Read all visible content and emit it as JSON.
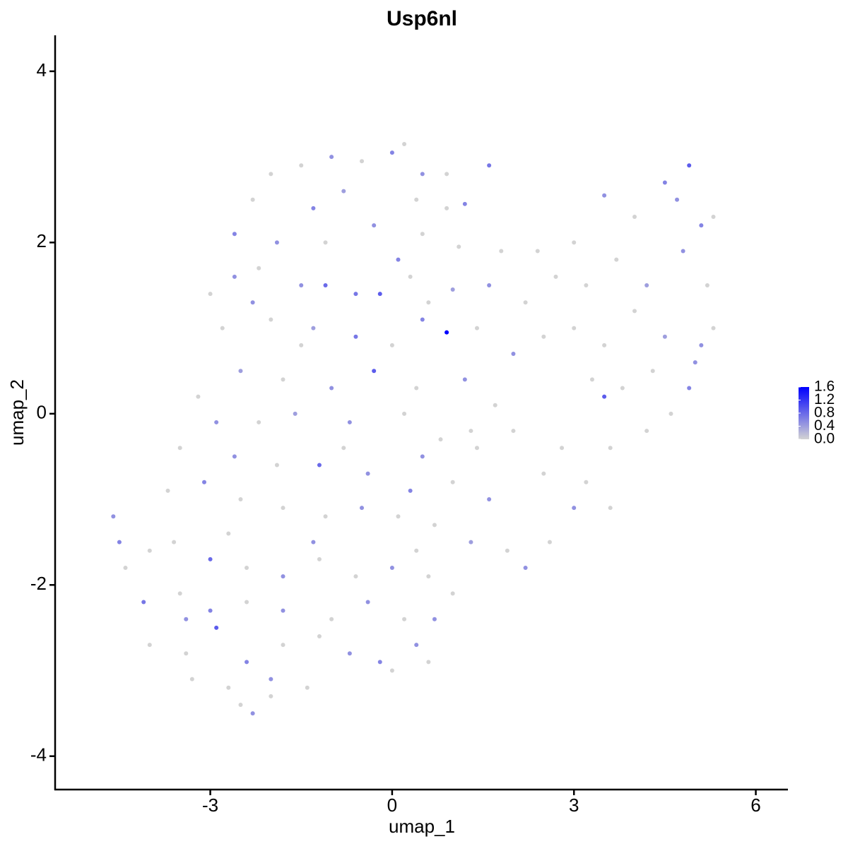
{
  "chart_data": {
    "type": "scatter",
    "title": "Usp6nl",
    "x_label": "umap_1",
    "y_label": "umap_2",
    "xlim": [
      -5.56,
      6.53
    ],
    "xticks": [
      -3,
      0,
      3,
      6
    ],
    "ylim": [
      -4.39,
      4.42
    ],
    "yticks": [
      -4,
      -2,
      0,
      2,
      4
    ],
    "color_low": "#d3d3d3",
    "color_high": "#0000ff",
    "colorbar_lim": [
      0,
      1.6
    ],
    "colorbar_ticks": [
      {
        "value": 0,
        "label": "0.0"
      },
      0.4,
      0.8,
      1.2,
      {
        "value": 1.6,
        "label": "1.6"
      }
    ],
    "x": [
      -2,
      -1.5,
      -1,
      -0.5,
      0,
      0.2,
      0.5,
      0.9,
      1.6,
      -2.3,
      -1.3,
      -0.8,
      0.4,
      0.9,
      1.2,
      -2.6,
      -1.9,
      -1.1,
      -0.3,
      0.5,
      1.1,
      -3.0,
      -2.6,
      -2.2,
      -1.5,
      -1.1,
      -0.6,
      -0.2,
      0.1,
      0.6,
      1.0,
      1.6,
      2.2,
      -2.8,
      -2.0,
      -1.3,
      -0.6,
      0.0,
      0.5,
      0.9,
      1.4,
      2.0,
      2.5,
      3.0,
      3.5,
      4.0,
      4.5,
      4.7,
      4.9,
      5.1,
      5.3,
      2.7,
      3.2,
      3.7,
      4.2,
      4.8,
      5.2,
      3.0,
      3.5,
      4.0,
      4.5,
      5.1,
      5.3,
      3.3,
      3.8,
      4.3,
      4.9,
      5.0,
      3.5,
      3.6,
      4.2,
      4.6,
      3.2,
      3.6,
      3.0,
      2.6,
      2.2,
      2.5,
      2.0,
      2.8,
      -2.5,
      -1.8,
      -1.0,
      -0.3,
      0.4,
      1.2,
      1.7,
      -3.2,
      -2.9,
      -2.2,
      -1.6,
      -0.7,
      0.2,
      0.8,
      1.4,
      -3.5,
      -2.6,
      -1.9,
      -1.2,
      -0.4,
      0.3,
      1.0,
      1.6,
      -3.7,
      -3.1,
      -2.5,
      -1.8,
      -1.1,
      -0.5,
      0.1,
      0.7,
      1.3,
      1.9,
      -4.6,
      -4.5,
      -4.4,
      -4.0,
      -3.6,
      -3.0,
      -2.4,
      -1.8,
      -1.2,
      -0.6,
      0.0,
      0.6,
      1.0,
      -4.1,
      -3.5,
      -3.0,
      -2.4,
      -1.8,
      -1.0,
      -0.4,
      0.2,
      0.7,
      -4.0,
      -3.4,
      -2.9,
      -2.4,
      -1.8,
      -1.2,
      -0.7,
      -0.2,
      0.4,
      0.6,
      -3.3,
      -2.7,
      -2.0,
      -1.4,
      0.0,
      -2.3,
      -2.5,
      -2.0,
      -1.5,
      -2.3,
      0.3,
      1.8,
      2.4,
      -0.8,
      0.5,
      1.3,
      -1.3,
      -2.7,
      0.4,
      -3.4
    ],
    "y": [
      2.8,
      2.9,
      3.0,
      2.95,
      3.05,
      3.15,
      2.8,
      2.8,
      2.9,
      2.5,
      2.4,
      2.6,
      2.5,
      2.4,
      2.45,
      2.1,
      2.0,
      2.0,
      2.2,
      2.1,
      1.95,
      1.4,
      1.6,
      1.7,
      1.5,
      1.5,
      1.4,
      1.4,
      1.8,
      1.3,
      1.45,
      1.5,
      1.3,
      1.0,
      1.1,
      1.0,
      0.9,
      0.8,
      1.1,
      0.95,
      1.0,
      0.7,
      0.9,
      2.0,
      2.55,
      2.3,
      2.7,
      2.5,
      2.9,
      2.2,
      2.3,
      1.6,
      1.5,
      1.8,
      1.5,
      1.9,
      1.5,
      1.0,
      0.8,
      1.2,
      0.9,
      0.8,
      1.0,
      0.4,
      0.3,
      0.5,
      0.3,
      0.6,
      0.2,
      -0.4,
      -0.2,
      0.0,
      -0.8,
      -1.1,
      -1.1,
      -1.5,
      -1.8,
      -0.7,
      -0.2,
      -0.4,
      0.5,
      0.4,
      0.3,
      0.5,
      0.3,
      0.4,
      0.1,
      0.2,
      -0.1,
      -0.1,
      0.0,
      -0.1,
      0.0,
      -0.3,
      -0.4,
      -0.4,
      -0.5,
      -0.6,
      -0.6,
      -0.7,
      -0.9,
      -0.8,
      -1.0,
      -0.9,
      -0.8,
      -1.0,
      -1.1,
      -1.2,
      -1.1,
      -1.2,
      -1.3,
      -1.5,
      -1.6,
      -1.2,
      -1.5,
      -1.8,
      -1.6,
      -1.5,
      -1.7,
      -1.8,
      -1.9,
      -1.7,
      -1.9,
      -1.8,
      -1.9,
      -2.1,
      -2.2,
      -2.1,
      -2.3,
      -2.2,
      -2.3,
      -2.4,
      -2.2,
      -2.4,
      -2.4,
      -2.7,
      -2.8,
      -2.5,
      -2.9,
      -2.7,
      -2.6,
      -2.8,
      -2.9,
      -2.7,
      -2.9,
      -3.1,
      -3.2,
      -3.1,
      -3.2,
      -3.0,
      -3.5,
      -3.4,
      -3.3,
      0.8,
      1.3,
      1.6,
      1.9,
      1.9,
      -0.4,
      -0.5,
      -0.2,
      -1.5,
      -1.4,
      -1.6,
      -2.4
    ],
    "values": [
      0,
      0,
      0.5,
      0,
      0.6,
      0,
      0.5,
      0,
      0.7,
      0,
      0.6,
      0.4,
      0,
      0,
      0.6,
      0.6,
      0.5,
      0,
      0.5,
      0,
      0,
      0,
      0.5,
      0,
      0.5,
      0.8,
      0.7,
      0.9,
      0.6,
      0,
      0.4,
      0.5,
      0,
      0,
      0,
      0.4,
      0.7,
      0,
      0.6,
      1.6,
      0,
      0.5,
      0,
      0,
      0.5,
      0,
      0.6,
      0.5,
      0.9,
      0.6,
      0,
      0,
      0,
      0,
      0.4,
      0.5,
      0,
      0,
      0,
      0,
      0.4,
      0.5,
      0,
      0,
      0,
      0,
      0.6,
      0.5,
      0.9,
      0,
      0,
      0,
      0,
      0,
      0.5,
      0,
      0.5,
      0,
      0,
      0,
      0.4,
      0,
      0.5,
      0.9,
      0,
      0.5,
      0,
      0,
      0.5,
      0,
      0.4,
      0.5,
      0,
      0,
      0,
      0,
      0.5,
      0,
      0.8,
      0.5,
      0.6,
      0,
      0.5,
      0,
      0.6,
      0,
      0,
      0,
      0.5,
      0,
      0,
      0.4,
      0,
      0.5,
      0.6,
      0,
      0,
      0,
      0.8,
      0,
      0.5,
      0,
      0,
      0.5,
      0,
      0,
      0.7,
      0,
      0.6,
      0,
      0.5,
      0,
      0.5,
      0,
      0.5,
      0,
      0,
      0.9,
      0.6,
      0,
      0,
      0.5,
      0.6,
      0.5,
      0,
      0,
      0,
      0.5,
      0,
      0,
      0.5,
      0,
      0,
      0,
      0.5,
      0,
      0,
      0,
      0,
      0.5,
      0,
      0.5,
      0,
      0,
      0.5
    ]
  }
}
